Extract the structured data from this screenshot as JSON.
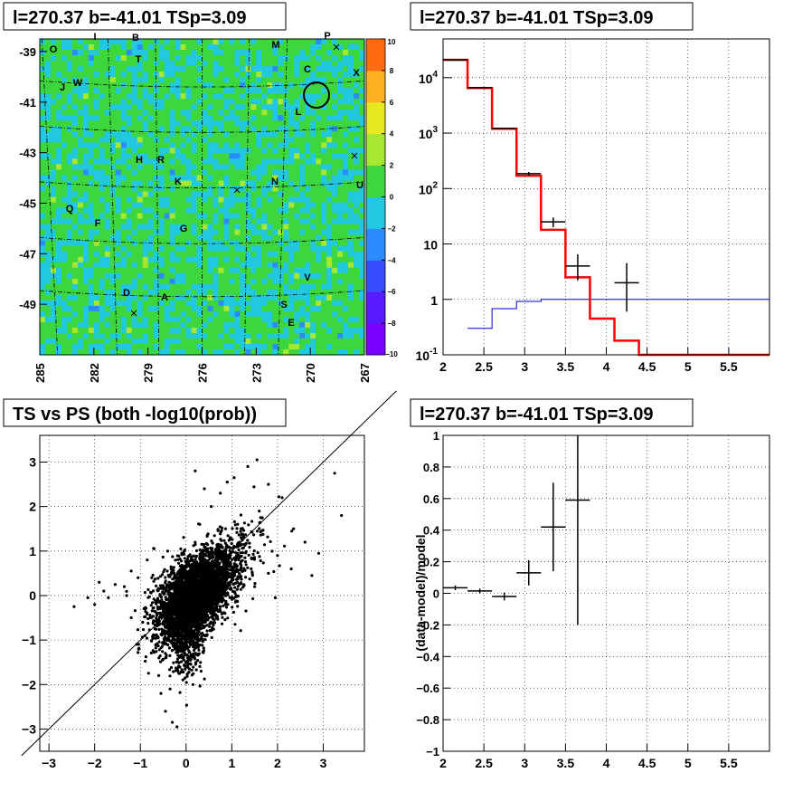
{
  "panels": {
    "skymap": {
      "title": "l=270.37 b=-41.01 TSp=3.09",
      "x_ticks": [
        "285",
        "282",
        "279",
        "276",
        "273",
        "270",
        "267"
      ],
      "y_ticks": [
        "-39",
        "-41",
        "-43",
        "-45",
        "-47",
        "-49"
      ],
      "colorbar_ticks": [
        "10",
        "8",
        "6",
        "4",
        "2",
        "0",
        "−2",
        "−4",
        "−6",
        "−8",
        "−10"
      ],
      "source_labels": [
        "O",
        "I",
        "B",
        "M",
        "P",
        "T",
        "C",
        "X",
        "J",
        "W",
        "L",
        "H",
        "R",
        "K",
        "N",
        "U",
        "Q",
        "F",
        "G",
        "V",
        "D",
        "A",
        "S",
        "E"
      ]
    },
    "spectrum": {
      "title": "l=270.37 b=-41.01 TSp=3.09",
      "x_ticks": [
        "2",
        "2.5",
        "3",
        "3.5",
        "4",
        "4.5",
        "5",
        "5.5"
      ],
      "y_ticks": [
        "10^{4}",
        "10^{3}",
        "10^{2}",
        "10",
        "1",
        "10^{-1}"
      ]
    },
    "scatter": {
      "title": "TS vs PS (both -log10(prob))",
      "x_ticks": [
        "−3",
        "−2",
        "−1",
        "0",
        "1",
        "2",
        "3"
      ],
      "y_ticks": [
        "3",
        "2",
        "1",
        "0",
        "−1",
        "−2",
        "−3"
      ]
    },
    "residual": {
      "title": "l=270.37 b=-41.01 TSp=3.09",
      "ylabel": "(data-model)/model",
      "x_ticks": [
        "2",
        "2.5",
        "3",
        "3.5",
        "4",
        "4.5",
        "5",
        "5.5"
      ],
      "y_ticks": [
        "1",
        "0.8",
        "0.6",
        "0.4",
        "0.2",
        "0",
        "−0.2",
        "−0.4",
        "−0.6",
        "−0.8",
        "−1"
      ]
    }
  },
  "chart_data": [
    {
      "type": "heatmap",
      "title": "l=270.37 b=-41.01 TSp=3.09",
      "xlim": [
        285,
        267
      ],
      "ylim": [
        -51,
        -38.5
      ],
      "zlim": [
        -10,
        10
      ],
      "circle": {
        "l": 270.37,
        "b": -41.01
      }
    },
    {
      "type": "line",
      "title": "l=270.37 b=-41.01 TSp=3.09",
      "xlim": [
        2,
        6
      ],
      "ylim": [
        0.1,
        50000
      ],
      "yscale": "log",
      "grid": true,
      "series": [
        {
          "color": "#ff0000",
          "edges": [
            2.0,
            2.3,
            2.6,
            2.9,
            3.2,
            3.5,
            3.8,
            4.1,
            4.4,
            6.0
          ],
          "values": [
            21000,
            6500,
            1200,
            170,
            18,
            2.5,
            0.45,
            0.18,
            0.1
          ]
        },
        {
          "color": "#0000cc",
          "edges": [
            2.3,
            2.6,
            2.9,
            3.2,
            3.5,
            6.0
          ],
          "values": [
            0.3,
            0.68,
            0.92,
            1.0,
            1.0
          ]
        },
        {
          "color": "#000000",
          "points": [
            {
              "x": 2.15,
              "y": 21000,
              "xerr": 0.15,
              "ylo": 20850,
              "yhi": 21150
            },
            {
              "x": 2.45,
              "y": 6600,
              "xerr": 0.15,
              "ylo": 6520,
              "yhi": 6680
            },
            {
              "x": 2.75,
              "y": 1220,
              "xerr": 0.15,
              "ylo": 1185,
              "yhi": 1255
            },
            {
              "x": 3.05,
              "y": 185,
              "xerr": 0.15,
              "ylo": 171,
              "yhi": 199
            },
            {
              "x": 3.35,
              "y": 25,
              "xerr": 0.15,
              "ylo": 20,
              "yhi": 30
            },
            {
              "x": 3.65,
              "y": 4,
              "xerr": 0.15,
              "ylo": 2.2,
              "yhi": 6.5
            },
            {
              "x": 4.25,
              "y": 2,
              "xerr": 0.15,
              "ylo": 0.6,
              "yhi": 4.5
            }
          ]
        }
      ]
    },
    {
      "type": "scatter",
      "title": "TS vs PS (both -log10(prob))",
      "xlim": [
        -3.2,
        3.9
      ],
      "ylim": [
        -3.5,
        3.6
      ],
      "grid": true,
      "points": [
        [
          -2.45,
          -0.25
        ],
        [
          -2.15,
          -0.05
        ],
        [
          -2.0,
          -0.2
        ],
        [
          -1.9,
          0.3
        ],
        [
          -1.8,
          0.1
        ],
        [
          -1.7,
          -0.05
        ],
        [
          -1.55,
          0.25
        ],
        [
          -1.35,
          0.2
        ],
        [
          -1.2,
          0.55
        ],
        [
          -1.2,
          -0.5
        ],
        [
          -1.05,
          0.4
        ],
        [
          -0.95,
          -0.6
        ],
        [
          -0.85,
          0.8
        ],
        [
          -0.7,
          1.05
        ],
        [
          -0.6,
          -1.8
        ],
        [
          -0.55,
          -2.2
        ],
        [
          -0.45,
          -2.6
        ],
        [
          -0.3,
          -2.85
        ],
        [
          -0.2,
          -2.95
        ],
        [
          -0.35,
          -2.1
        ],
        [
          0.15,
          -2.0
        ],
        [
          0.3,
          1.6
        ],
        [
          0.55,
          2.0
        ],
        [
          0.75,
          2.3
        ],
        [
          0.9,
          2.55
        ],
        [
          1.05,
          2.65
        ],
        [
          1.35,
          2.9
        ],
        [
          1.55,
          3.05
        ],
        [
          1.8,
          2.5
        ],
        [
          2.1,
          2.2
        ],
        [
          2.35,
          1.5
        ],
        [
          2.6,
          1.2
        ],
        [
          2.75,
          0.45
        ],
        [
          2.9,
          0.95
        ],
        [
          3.25,
          2.75
        ],
        [
          3.4,
          1.8
        ],
        [
          1.5,
          0.2
        ],
        [
          1.8,
          0.5
        ],
        [
          2.0,
          0.9
        ],
        [
          2.3,
          0.6
        ],
        [
          1.2,
          1.5
        ],
        [
          0.9,
          -0.2
        ],
        [
          1.1,
          0.0
        ],
        [
          -1.3,
          0.0
        ],
        [
          -0.9,
          -0.9
        ],
        [
          1.6,
          1.9
        ],
        [
          0.4,
          2.4
        ],
        [
          0.2,
          2.8
        ],
        [
          -0.15,
          -1.6
        ],
        [
          1.95,
          -0.05
        ]
      ]
    },
    {
      "type": "scatter",
      "title": "l=270.37 b=-41.01 TSp=3.09",
      "ylabel": "(data-model)/model",
      "xlim": [
        2,
        6
      ],
      "ylim": [
        -1,
        1
      ],
      "grid": true,
      "points": [
        {
          "x": 2.15,
          "y": 0.035,
          "xerr": 0.15,
          "ylo": 0.02,
          "yhi": 0.05
        },
        {
          "x": 2.45,
          "y": 0.015,
          "xerr": 0.15,
          "ylo": 0.0,
          "yhi": 0.03
        },
        {
          "x": 2.75,
          "y": -0.02,
          "xerr": 0.15,
          "ylo": -0.045,
          "yhi": 0.005
        },
        {
          "x": 3.05,
          "y": 0.13,
          "xerr": 0.15,
          "ylo": 0.05,
          "yhi": 0.21
        },
        {
          "x": 3.35,
          "y": 0.42,
          "xerr": 0.15,
          "ylo": 0.14,
          "yhi": 0.7
        },
        {
          "x": 3.65,
          "y": 0.59,
          "xerr": 0.15,
          "ylo": -0.2,
          "yhi": 1.0
        }
      ]
    }
  ]
}
